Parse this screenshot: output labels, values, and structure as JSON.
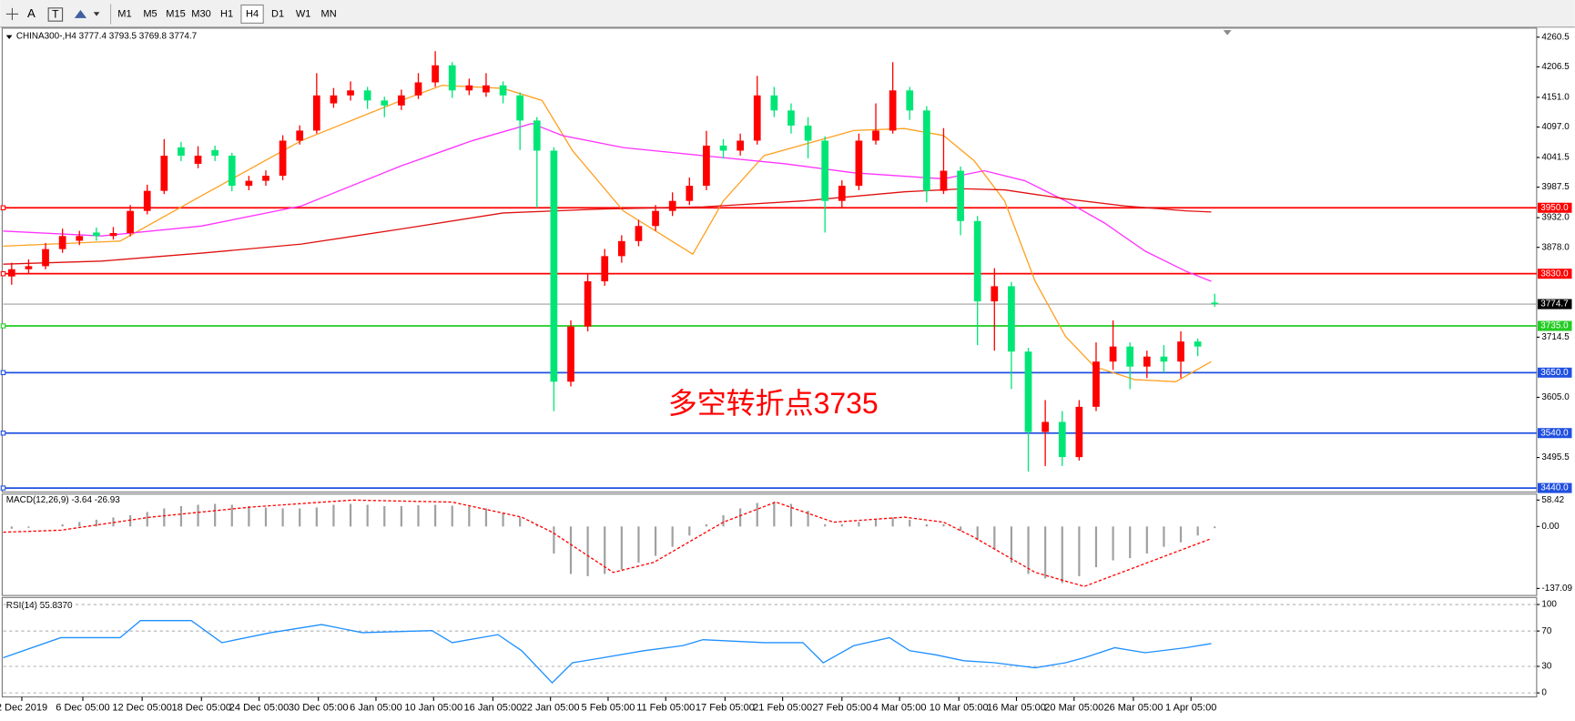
{
  "toolbar": {
    "tools": [
      "A",
      "T"
    ],
    "timeframes": [
      "M1",
      "M5",
      "M15",
      "M30",
      "H1",
      "H4",
      "D1",
      "W1",
      "MN"
    ],
    "active_timeframe": "H4"
  },
  "chart_data": [
    {
      "type": "candlestick",
      "title": "CHINA300-,H4  3777.4 3793.5 3769.8 3774.7",
      "annotation": "多空转折点3735",
      "up_color": "#ff0000",
      "down_color": "#00e676",
      "xlim": [
        -0.5,
        90
      ],
      "ylim": [
        3434.5,
        4273.3
      ],
      "yticks": [
        4260.5,
        4206.5,
        {
          "value": 4151,
          "label": "4151.0"
        },
        {
          "value": 4097,
          "label": "4097.0"
        },
        4041.5,
        3987.5,
        {
          "value": 3932,
          "label": "3932.0"
        },
        {
          "value": 3878,
          "label": "3878.0"
        },
        3714.5,
        {
          "value": 3605,
          "label": "3605.0"
        },
        3495.5
      ],
      "levels": [
        {
          "value": 3950,
          "label": "3950.0",
          "color": "#ff0000"
        },
        {
          "value": 3830,
          "label": "3830.0",
          "color": "#ff0000"
        },
        {
          "value": 3735,
          "label": "3735.0",
          "color": "#22cc22"
        },
        {
          "value": 3650,
          "label": "3650.0",
          "color": "#2050e0"
        },
        {
          "value": 3540,
          "label": "3540.0",
          "color": "#2050e0"
        },
        {
          "value": 3440,
          "label": "3440.0",
          "color": "#2050e0"
        }
      ],
      "last_price": {
        "value": 3774.7,
        "label": "3774.7"
      },
      "series": [
        {
          "color": "#ffa020",
          "x": [
            -0.5,
            6.4,
            11.2,
            17.1,
            23.0,
            25.4,
            29.0,
            31.3,
            33.1,
            36.1,
            40.2,
            42.0,
            44.4,
            49.7,
            52.7,
            55.0,
            56.8,
            58.6,
            60.4,
            62.2,
            63.9,
            66.3,
            68.7,
            70.8
          ],
          "values": [
            3880.3,
            3889.4,
            3971.7,
            4072.2,
            4145.3,
            4172.8,
            4167.3,
            4145.3,
            4054.0,
            3944.3,
            3865.6,
            3962.5,
            4044.8,
            4090.5,
            4094.2,
            4081.4,
            4035.7,
            3962.5,
            3816.3,
            3715.8,
            3661.0,
            3637.2,
            3633.5,
            3670.1
          ]
        },
        {
          "color": "#ff33ff",
          "x": [
            -0.5,
            5.3,
            11.2,
            17.1,
            23.0,
            27.2,
            30.7,
            32.5,
            36.1,
            40.8,
            45.6,
            49.7,
            55.0,
            57.4,
            59.8,
            62.2,
            64.5,
            66.9,
            69.3,
            70.8
          ],
          "values": [
            3907.7,
            3898.6,
            3916.8,
            3953.4,
            4026.5,
            4072.2,
            4103.3,
            4081.4,
            4059.4,
            4044.8,
            4030.2,
            4013.7,
            4002.7,
            4017.4,
            3999.1,
            3962.5,
            3922.3,
            3871.1,
            3834.6,
            3816.3
          ]
        },
        {
          "color": "#e01010",
          "x": [
            -0.5,
            5.3,
            11.2,
            17.1,
            23.0,
            29.0,
            34.9,
            40.8,
            46.7,
            52.7,
            56.2,
            58.6,
            62.2,
            65.7,
            69.3,
            70.8
          ],
          "values": [
            3847.4,
            3852.9,
            3867.5,
            3883.9,
            3911.4,
            3940.6,
            3947.9,
            3951.6,
            3962.5,
            3979.0,
            3984.5,
            3982.6,
            3966.2,
            3953.4,
            3944.3,
            3942.4
          ]
        }
      ],
      "candles": {
        "x": [
          0,
          1,
          2,
          3,
          4,
          5,
          6,
          7,
          8,
          9,
          10,
          11,
          12,
          13,
          14,
          15,
          16,
          17,
          18,
          19,
          20,
          21,
          22,
          23,
          24,
          25,
          26,
          27,
          28,
          29,
          30,
          31,
          32,
          33,
          34,
          35,
          36,
          37,
          38,
          39,
          40,
          41,
          42,
          43,
          44,
          45,
          46,
          47,
          48,
          49,
          50,
          51,
          52,
          53,
          54,
          55,
          56,
          57,
          58,
          59,
          60,
          61,
          62,
          63,
          64,
          65,
          66,
          67,
          68,
          69,
          70,
          71
        ],
        "open": [
          3825.0,
          3838.2,
          3843.7,
          3874.8,
          3890.0,
          3905.0,
          3898.6,
          3904.0,
          3944.3,
          3980.8,
          4060.0,
          4030.0,
          4055.0,
          4044.8,
          3990.0,
          3999.1,
          4008.3,
          4072.2,
          4090.5,
          4140.0,
          4154.5,
          4163.6,
          4145.3,
          4136.2,
          4154.5,
          4178.2,
          4209.3,
          4163.6,
          4160.0,
          4172.8,
          4154.5,
          4108.8,
          4054.0,
          3633.5,
          3734.0,
          3816.3,
          3862.0,
          3889.4,
          3916.8,
          3944.3,
          3962.5,
          3990.0,
          4063.1,
          4054.0,
          4072.2,
          4154.5,
          4127.1,
          4099.6,
          4072.2,
          3962.5,
          3990.0,
          4072.2,
          4090.5,
          4163.6,
          4127.1,
          3980.8,
          4017.4,
          3925.9,
          3779.7,
          3807.2,
          3688.3,
          3542.1,
          3560.3,
          3496.3,
          3587.8,
          3670.1,
          3697.5,
          3661.0,
          3679.2,
          3670.1,
          3706.6,
          3777.4
        ],
        "high": [
          3850,
          3856,
          3886,
          3912,
          3908,
          3914,
          3915,
          3955,
          3992,
          4075,
          4070,
          4062,
          4063,
          4050,
          4008,
          4018,
          4082,
          4100,
          4195,
          4168,
          4180,
          4170,
          4152,
          4165,
          4195,
          4235,
          4215,
          4185,
          4195,
          4180,
          4160,
          4115,
          4060,
          3745,
          3830,
          3875,
          3900,
          3928,
          3955,
          3978,
          4005,
          4090,
          4075,
          4085,
          4190,
          4170,
          4140,
          4115,
          4080,
          4000,
          4085,
          4140,
          4215,
          4170,
          4135,
          4095,
          4025,
          3935,
          3840,
          3815,
          3695,
          3600,
          3580,
          3600,
          3705,
          3745,
          3705,
          3690,
          3700,
          3725,
          3712,
          3793.5
        ],
        "low": [
          3810,
          3830,
          3838,
          3868,
          3882,
          3890,
          3892,
          3898,
          3938,
          3975,
          4035,
          4022,
          4035,
          3980,
          3982,
          3990,
          4000,
          4065,
          4085,
          4132,
          4145,
          4130,
          4115,
          4128,
          4148,
          4170,
          4150,
          4155,
          4152,
          4140,
          4055,
          3950,
          3580,
          3625,
          3725,
          3808,
          3850,
          3880,
          3908,
          3935,
          3955,
          3982,
          4040,
          4045,
          4065,
          4115,
          4085,
          4040,
          3905,
          3950,
          3982,
          4065,
          4085,
          4110,
          3960,
          3975,
          3900,
          3700,
          3690,
          3620,
          3470,
          3480,
          3480,
          3490,
          3580,
          3655,
          3620,
          3640,
          3650,
          3640,
          3680,
          3769.8
        ],
        "close": [
          3838.2,
          3843.7,
          3874.8,
          3898.6,
          3898.6,
          3898.6,
          3904.0,
          3944.3,
          3980.8,
          4044.8,
          4044.8,
          4044.8,
          4044.8,
          3990.0,
          3999.1,
          4008.3,
          4072.2,
          4090.5,
          4154.5,
          4154.5,
          4163.6,
          4145.3,
          4136.2,
          4154.5,
          4178.2,
          4209.3,
          4163.6,
          4172.8,
          4172.8,
          4154.5,
          4108.8,
          4054.0,
          3633.5,
          3734.0,
          3816.3,
          3862.0,
          3889.4,
          3916.8,
          3944.3,
          3962.5,
          3990.0,
          4063.1,
          4054.0,
          4072.2,
          4154.5,
          4127.1,
          4099.6,
          4072.2,
          3962.5,
          3990.0,
          4072.2,
          4090.5,
          4163.6,
          4127.1,
          3980.8,
          4017.4,
          3925.9,
          3779.7,
          3807.2,
          3688.3,
          3542.1,
          3560.3,
          3496.3,
          3587.8,
          3670.1,
          3697.5,
          3661.0,
          3679.2,
          3670.1,
          3706.6,
          3697.5,
          3774.7
        ]
      }
    },
    {
      "type": "macd",
      "title": "MACD(12,26,9) -3.64 -26.93",
      "xlim": [
        -0.5,
        90
      ],
      "ylim": [
        -150.4,
        69.5
      ],
      "yticks": [
        58.42,
        {
          "value": 0,
          "label": "0.00"
        },
        -137.09
      ],
      "histogram": {
        "color": "#a0a0a0",
        "x": [
          0,
          1,
          2,
          3,
          4,
          5,
          6,
          7,
          8,
          9,
          10,
          11,
          12,
          13,
          14,
          15,
          16,
          17,
          18,
          19,
          20,
          21,
          22,
          23,
          24,
          25,
          26,
          27,
          28,
          29,
          30,
          31,
          32,
          33,
          34,
          35,
          36,
          37,
          38,
          39,
          40,
          41,
          42,
          43,
          44,
          45,
          46,
          47,
          48,
          49,
          50,
          51,
          52,
          53,
          54,
          55,
          56,
          57,
          58,
          59,
          60,
          61,
          62,
          63,
          64,
          65,
          66,
          67,
          68,
          69,
          70,
          71
        ],
        "values": [
          -5,
          -3,
          0,
          5,
          10,
          15,
          20,
          25,
          32,
          40,
          45,
          48,
          50,
          48,
          45,
          42,
          40,
          40,
          42,
          48,
          50,
          48,
          45,
          45,
          47,
          48,
          46,
          44,
          40,
          30,
          20,
          5,
          -60,
          -105,
          -110,
          -105,
          -95,
          -80,
          -65,
          -45,
          -20,
          5,
          25,
          40,
          52,
          55,
          50,
          35,
          5,
          5,
          10,
          15,
          20,
          15,
          5,
          5,
          -10,
          -30,
          -50,
          -80,
          -105,
          -115,
          -125,
          -110,
          -90,
          -75,
          -70,
          -60,
          -45,
          -35,
          -20,
          -3.64
        ]
      },
      "signal": {
        "color": "#ff0000",
        "x": [
          -0.5,
          2.9,
          8.2,
          14.1,
          20.1,
          26.0,
          30.1,
          31.9,
          35.5,
          37.9,
          42.0,
          45.1,
          48.5,
          52.7,
          55.0,
          56.8,
          60.4,
          63.3,
          66.3,
          70.8
        ],
        "values": [
          -12.7,
          -8.2,
          20.6,
          42.9,
          58.4,
          54.0,
          20.6,
          -12.7,
          -101.6,
          -79.3,
          9.5,
          54.0,
          9.5,
          20.6,
          9.5,
          -23.8,
          -101.6,
          -132.7,
          -90.5,
          -26.93
        ]
      }
    },
    {
      "type": "line",
      "title": "RSI(14) 55.8370",
      "xlim": [
        -0.5,
        90
      ],
      "ylim": [
        -3.4,
        106.8
      ],
      "grid": true,
      "yticks": [
        100,
        70,
        30,
        0
      ],
      "xticks": [
        {
          "value": 0.6,
          "label": "2 Dec 2019"
        },
        {
          "value": 4.2,
          "label": "6 Dec 05:00"
        },
        {
          "value": 7.7,
          "label": "12 Dec 05:00"
        },
        {
          "value": 11.2,
          "label": "18 Dec 05:00"
        },
        {
          "value": 14.6,
          "label": "24 Dec 05:00"
        },
        {
          "value": 18.1,
          "label": "30 Dec 05:00"
        },
        {
          "value": 21.5,
          "label": "6 Jan 05:00"
        },
        {
          "value": 24.9,
          "label": "10 Jan 05:00"
        },
        {
          "value": 28.4,
          "label": "16 Jan 05:00"
        },
        {
          "value": 31.8,
          "label": "22 Jan 05:00"
        },
        {
          "value": 35.2,
          "label": "5 Feb 05:00"
        },
        {
          "value": 38.6,
          "label": "11 Feb 05:00"
        },
        {
          "value": 42.1,
          "label": "17 Feb 05:00"
        },
        {
          "value": 45.5,
          "label": "21 Feb 05:00"
        },
        {
          "value": 49.0,
          "label": "27 Feb 05:00"
        },
        {
          "value": 52.4,
          "label": "4 Mar 05:00"
        },
        {
          "value": 55.9,
          "label": "10 Mar 05:00"
        },
        {
          "value": 59.3,
          "label": "16 Mar 05:00"
        },
        {
          "value": 62.7,
          "label": "20 Mar 05:00"
        },
        {
          "value": 66.2,
          "label": "26 Mar 05:00"
        },
        {
          "value": 69.6,
          "label": "1 Apr 05:00"
        }
      ],
      "series": [
        {
          "color": "#1e90ff",
          "x": [
            -0.5,
            2.9,
            6.4,
            7.6,
            10.6,
            12.4,
            15.3,
            18.3,
            20.7,
            24.8,
            26.0,
            28.7,
            30.1,
            31.9,
            33.1,
            34.9,
            37.3,
            39.6,
            40.8,
            44.4,
            46.7,
            47.9,
            49.7,
            51.8,
            53.0,
            54.5,
            56.2,
            58.0,
            60.4,
            62.2,
            63.3,
            65.1,
            66.9,
            69.3,
            70.8
          ],
          "values": [
            39.8,
            62.5,
            62.5,
            81.8,
            81.8,
            56.8,
            68.2,
            77.3,
            68.2,
            70.5,
            56.8,
            65.9,
            47.7,
            11.4,
            34.1,
            39.8,
            47.7,
            53.4,
            60.2,
            56.8,
            56.8,
            34.1,
            53.4,
            62.5,
            47.7,
            43.2,
            36.4,
            34.1,
            28.4,
            34.1,
            39.8,
            51.1,
            45.5,
            51.1,
            55.837
          ]
        }
      ]
    }
  ]
}
